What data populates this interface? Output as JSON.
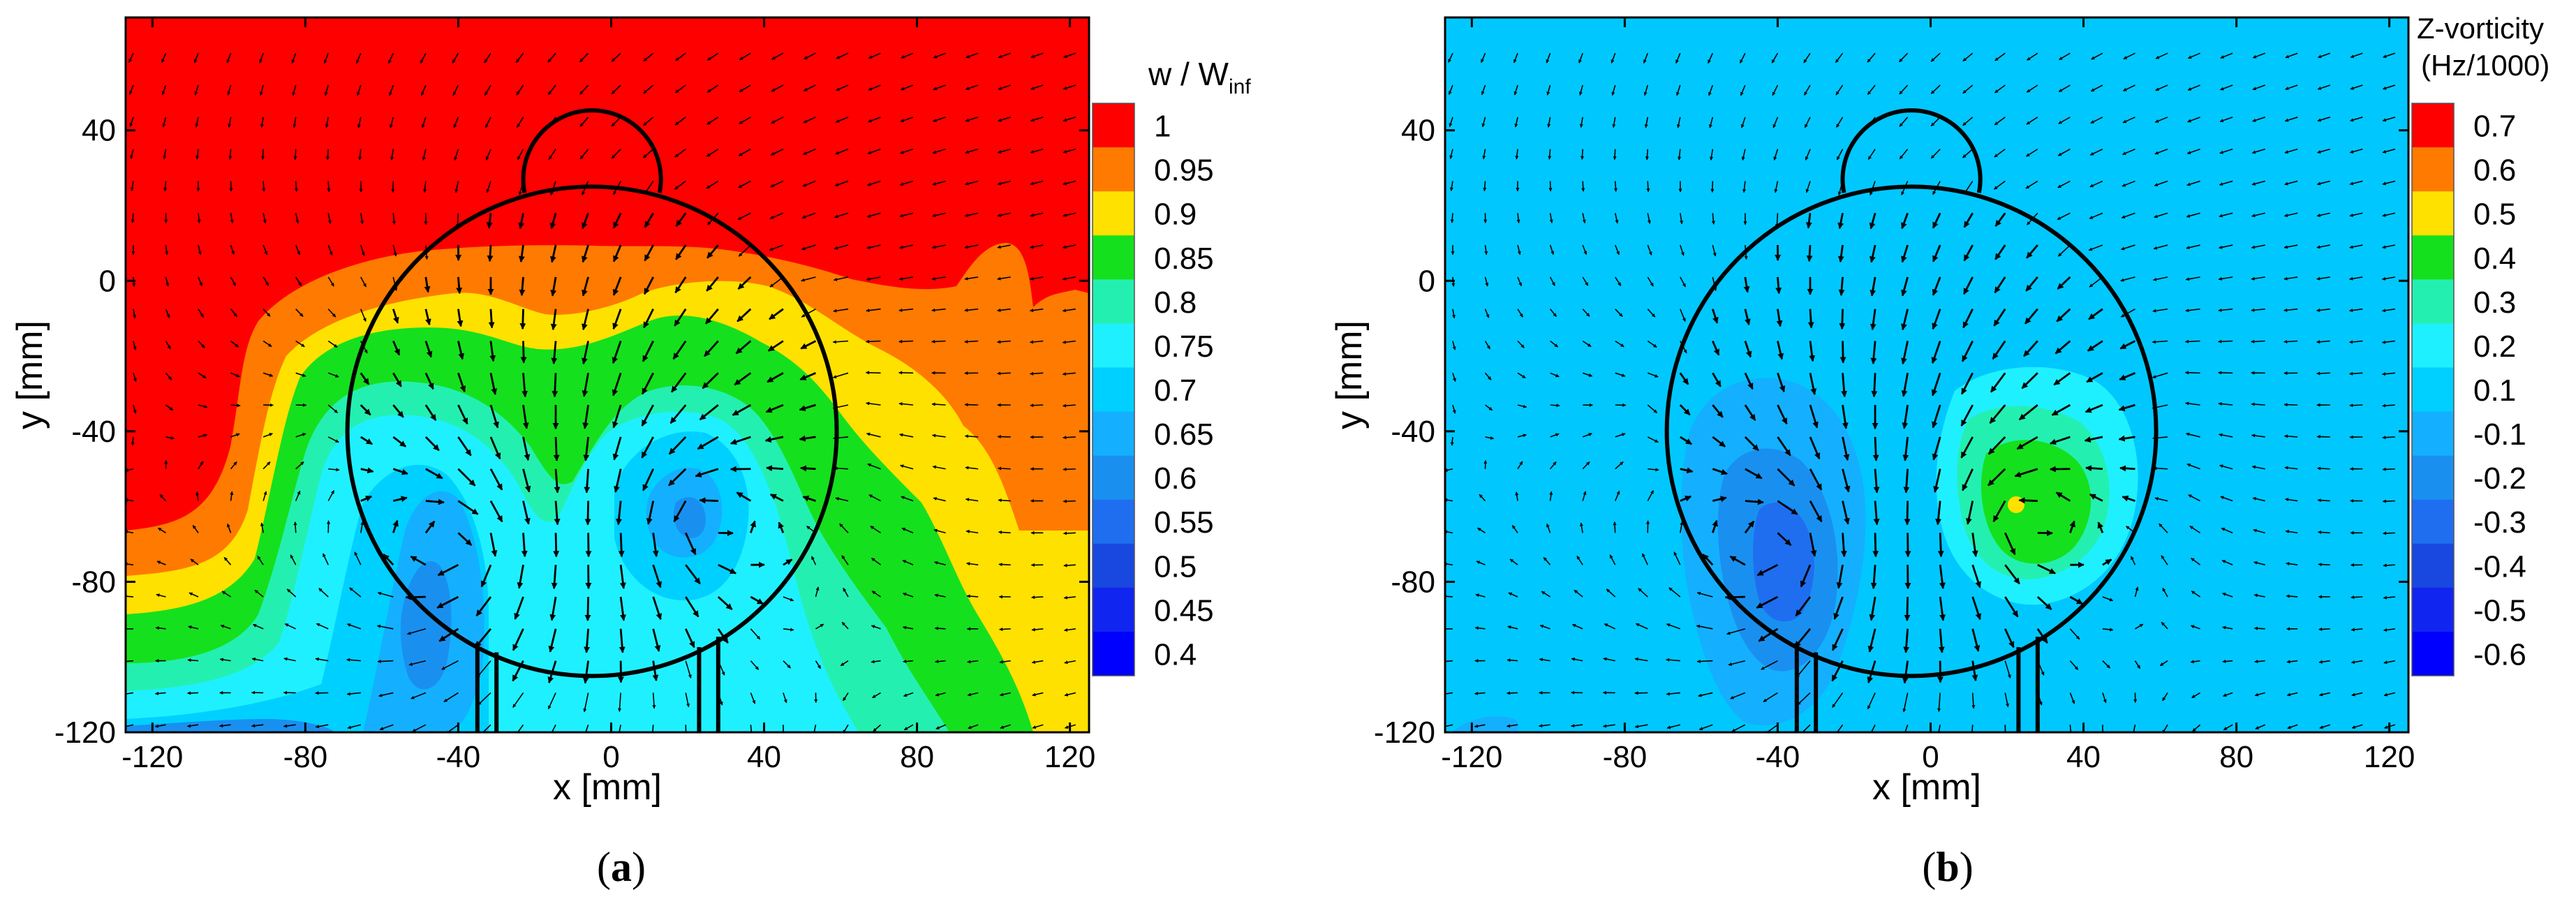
{
  "figure": {
    "panel_a": {
      "caption_open": "(",
      "caption_letter": "a",
      "caption_close": ")"
    },
    "panel_b": {
      "caption_open": "(",
      "caption_letter": "b",
      "caption_close": ")"
    }
  },
  "chart_data": [
    {
      "type": "heatmap",
      "panel": "a",
      "title": "",
      "xlabel": "x [mm]",
      "ylabel": "y [mm]",
      "xlim": [
        -127,
        125
      ],
      "ylim": [
        -120,
        70
      ],
      "xticks": [
        -120,
        -80,
        -40,
        0,
        40,
        80,
        120
      ],
      "yticks": [
        40,
        0,
        -40,
        -80,
        -120
      ],
      "colorbar": {
        "title_main": "w / W",
        "title_sub": "inf",
        "levels": [
          "1",
          "0.95",
          "0.9",
          "0.85",
          "0.8",
          "0.75",
          "0.7",
          "0.65",
          "0.6",
          "0.55",
          "0.5",
          "0.45",
          "0.4"
        ],
        "colors": [
          "#ff0000",
          "#ff7a00",
          "#ffe100",
          "#15e01e",
          "#23f0b0",
          "#1ff0ff",
          "#00d0ff",
          "#14b0ff",
          "#1990f0",
          "#1f6ef0",
          "#1848e0",
          "#1025f0",
          "#0000ff"
        ]
      },
      "contour_regions": [
        {
          "level": "1",
          "color": "#ff0000",
          "description": "freestream region"
        },
        {
          "level": "0.95",
          "color": "#ff7a00"
        },
        {
          "level": "0.9",
          "color": "#ffe100"
        },
        {
          "level": "0.85",
          "color": "#15e01e"
        },
        {
          "level": "0.75",
          "color": "#1ff0ff"
        },
        {
          "level": "0.65",
          "color": "#14b0ff"
        },
        {
          "level": "0.6",
          "color": "#1990f0",
          "description": "vortex core minimum near x=-40, y=-70 and x=25, y=-60"
        }
      ],
      "geometry": {
        "body_circle": {
          "cx": -5,
          "cy": -40,
          "r": 64
        },
        "head_dome": {
          "cx": -5,
          "cy": 27,
          "r": 18
        },
        "legs": [
          [
            -35,
            -30
          ],
          [
            23,
            28
          ]
        ]
      }
    },
    {
      "type": "heatmap",
      "panel": "b",
      "title": "",
      "xlabel": "x [mm]",
      "ylabel": "y [mm]",
      "xlim": [
        -127,
        125
      ],
      "ylim": [
        -120,
        70
      ],
      "xticks": [
        -120,
        -80,
        -40,
        0,
        40,
        80,
        120
      ],
      "yticks": [
        40,
        0,
        -40,
        -80,
        -120
      ],
      "colorbar": {
        "title_line1": "Z-vorticity",
        "title_line2": "(Hz/1000)",
        "levels": [
          "0.7",
          "0.6",
          "0.5",
          "0.4",
          "0.3",
          "0.2",
          "0.1",
          "-0.1",
          "-0.2",
          "-0.3",
          "-0.4",
          "-0.5",
          "-0.6"
        ],
        "colors": [
          "#ff0000",
          "#ff7a00",
          "#ffe100",
          "#15e01e",
          "#23f0b0",
          "#1ff0ff",
          "#00d0ff",
          "#14b0ff",
          "#1990f0",
          "#1f6ef0",
          "#1848e0",
          "#1025f0",
          "#0000ff"
        ]
      },
      "contour_regions": [
        {
          "level": "0.1",
          "color": "#00d0ff",
          "description": "background"
        },
        {
          "level": "-0.1",
          "color": "#14b0ff"
        },
        {
          "level": "-0.2",
          "color": "#1990f0"
        },
        {
          "level": "-0.3",
          "color": "#1f6ef0",
          "description": "negative vortex near x=-38, y=-72"
        },
        {
          "level": "0.2",
          "color": "#1ff0ff"
        },
        {
          "level": "0.3",
          "color": "#23f0b0"
        },
        {
          "level": "0.4",
          "color": "#15e01e",
          "description": "positive vortex near x=20, y=-62"
        },
        {
          "level": "0.5",
          "color": "#ffe100"
        }
      ],
      "geometry": {
        "body_circle": {
          "cx": -5,
          "cy": -40,
          "r": 64
        },
        "head_dome": {
          "cx": -5,
          "cy": 27,
          "r": 18
        },
        "legs": [
          [
            -35,
            -30
          ],
          [
            23,
            28
          ]
        ]
      }
    }
  ]
}
